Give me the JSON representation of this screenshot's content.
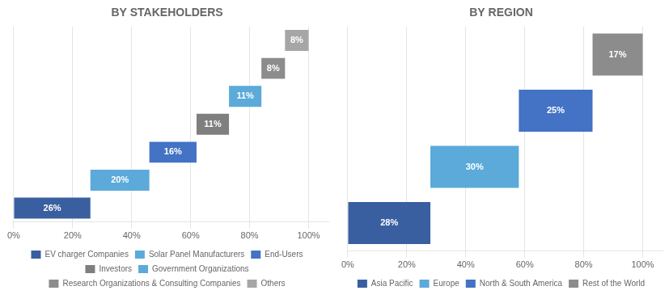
{
  "chart_data": [
    {
      "type": "bar",
      "title": "BY STAKEHOLDERS",
      "orientation": "horizontal",
      "stacked": true,
      "series": [
        {
          "name": "EV charger Companies",
          "color": "#3a5fa0",
          "values": [
            26
          ],
          "value_labels": [
            "26%"
          ]
        },
        {
          "name": "Solar Panel Manufacturers",
          "color": "#5baad9",
          "values": [
            20
          ],
          "value_labels": [
            "20%"
          ]
        },
        {
          "name": "End-Users",
          "color": "#4472c4",
          "values": [
            16
          ],
          "value_labels": [
            "16%"
          ]
        },
        {
          "name": "Investors",
          "color": "#7f7f7f",
          "values": [
            11
          ],
          "value_labels": [
            "11%"
          ]
        },
        {
          "name": "Government Organizations",
          "color": "#5baad9",
          "values": [
            11
          ],
          "value_labels": [
            "11%"
          ]
        },
        {
          "name": "Research Organizations & Consulting Companies",
          "color": "#8c8c8c",
          "values": [
            8
          ],
          "value_labels": [
            "8%"
          ]
        },
        {
          "name": "Others",
          "color": "#a6a6a6",
          "values": [
            8
          ],
          "value_labels": [
            "8%"
          ]
        }
      ],
      "xlim": [
        0,
        107
      ],
      "xticks": [
        {
          "value": 0,
          "label": "0%"
        },
        {
          "value": 20,
          "label": "20%"
        },
        {
          "value": 40,
          "label": "40%"
        },
        {
          "value": 60,
          "label": "60%"
        },
        {
          "value": 80,
          "label": "80%"
        },
        {
          "value": 100,
          "label": "100%"
        }
      ],
      "grid": true,
      "legend": "bottom",
      "data_labels": true,
      "tick_labels": "x"
    },
    {
      "type": "bar",
      "title": "BY REGION",
      "orientation": "horizontal",
      "stacked": true,
      "series": [
        {
          "name": "Asia Pacific",
          "color": "#3a5fa0",
          "values": [
            28
          ],
          "value_labels": [
            "28%"
          ]
        },
        {
          "name": "Europe",
          "color": "#5baad9",
          "values": [
            30
          ],
          "value_labels": [
            "30%"
          ]
        },
        {
          "name": "North & South America",
          "color": "#4472c4",
          "values": [
            25
          ],
          "value_labels": [
            "25%"
          ]
        },
        {
          "name": "Rest of the World",
          "color": "#8c8c8c",
          "values": [
            17
          ],
          "value_labels": [
            "17%"
          ]
        }
      ],
      "xlim": [
        0,
        107
      ],
      "xticks": [
        {
          "value": 0,
          "label": "0%"
        },
        {
          "value": 20,
          "label": "20%"
        },
        {
          "value": 40,
          "label": "40%"
        },
        {
          "value": 60,
          "label": "60%"
        },
        {
          "value": 80,
          "label": "80%"
        },
        {
          "value": 100,
          "label": "100%"
        }
      ],
      "grid": true,
      "legend": "bottom",
      "data_labels": true,
      "tick_labels": "x"
    }
  ]
}
